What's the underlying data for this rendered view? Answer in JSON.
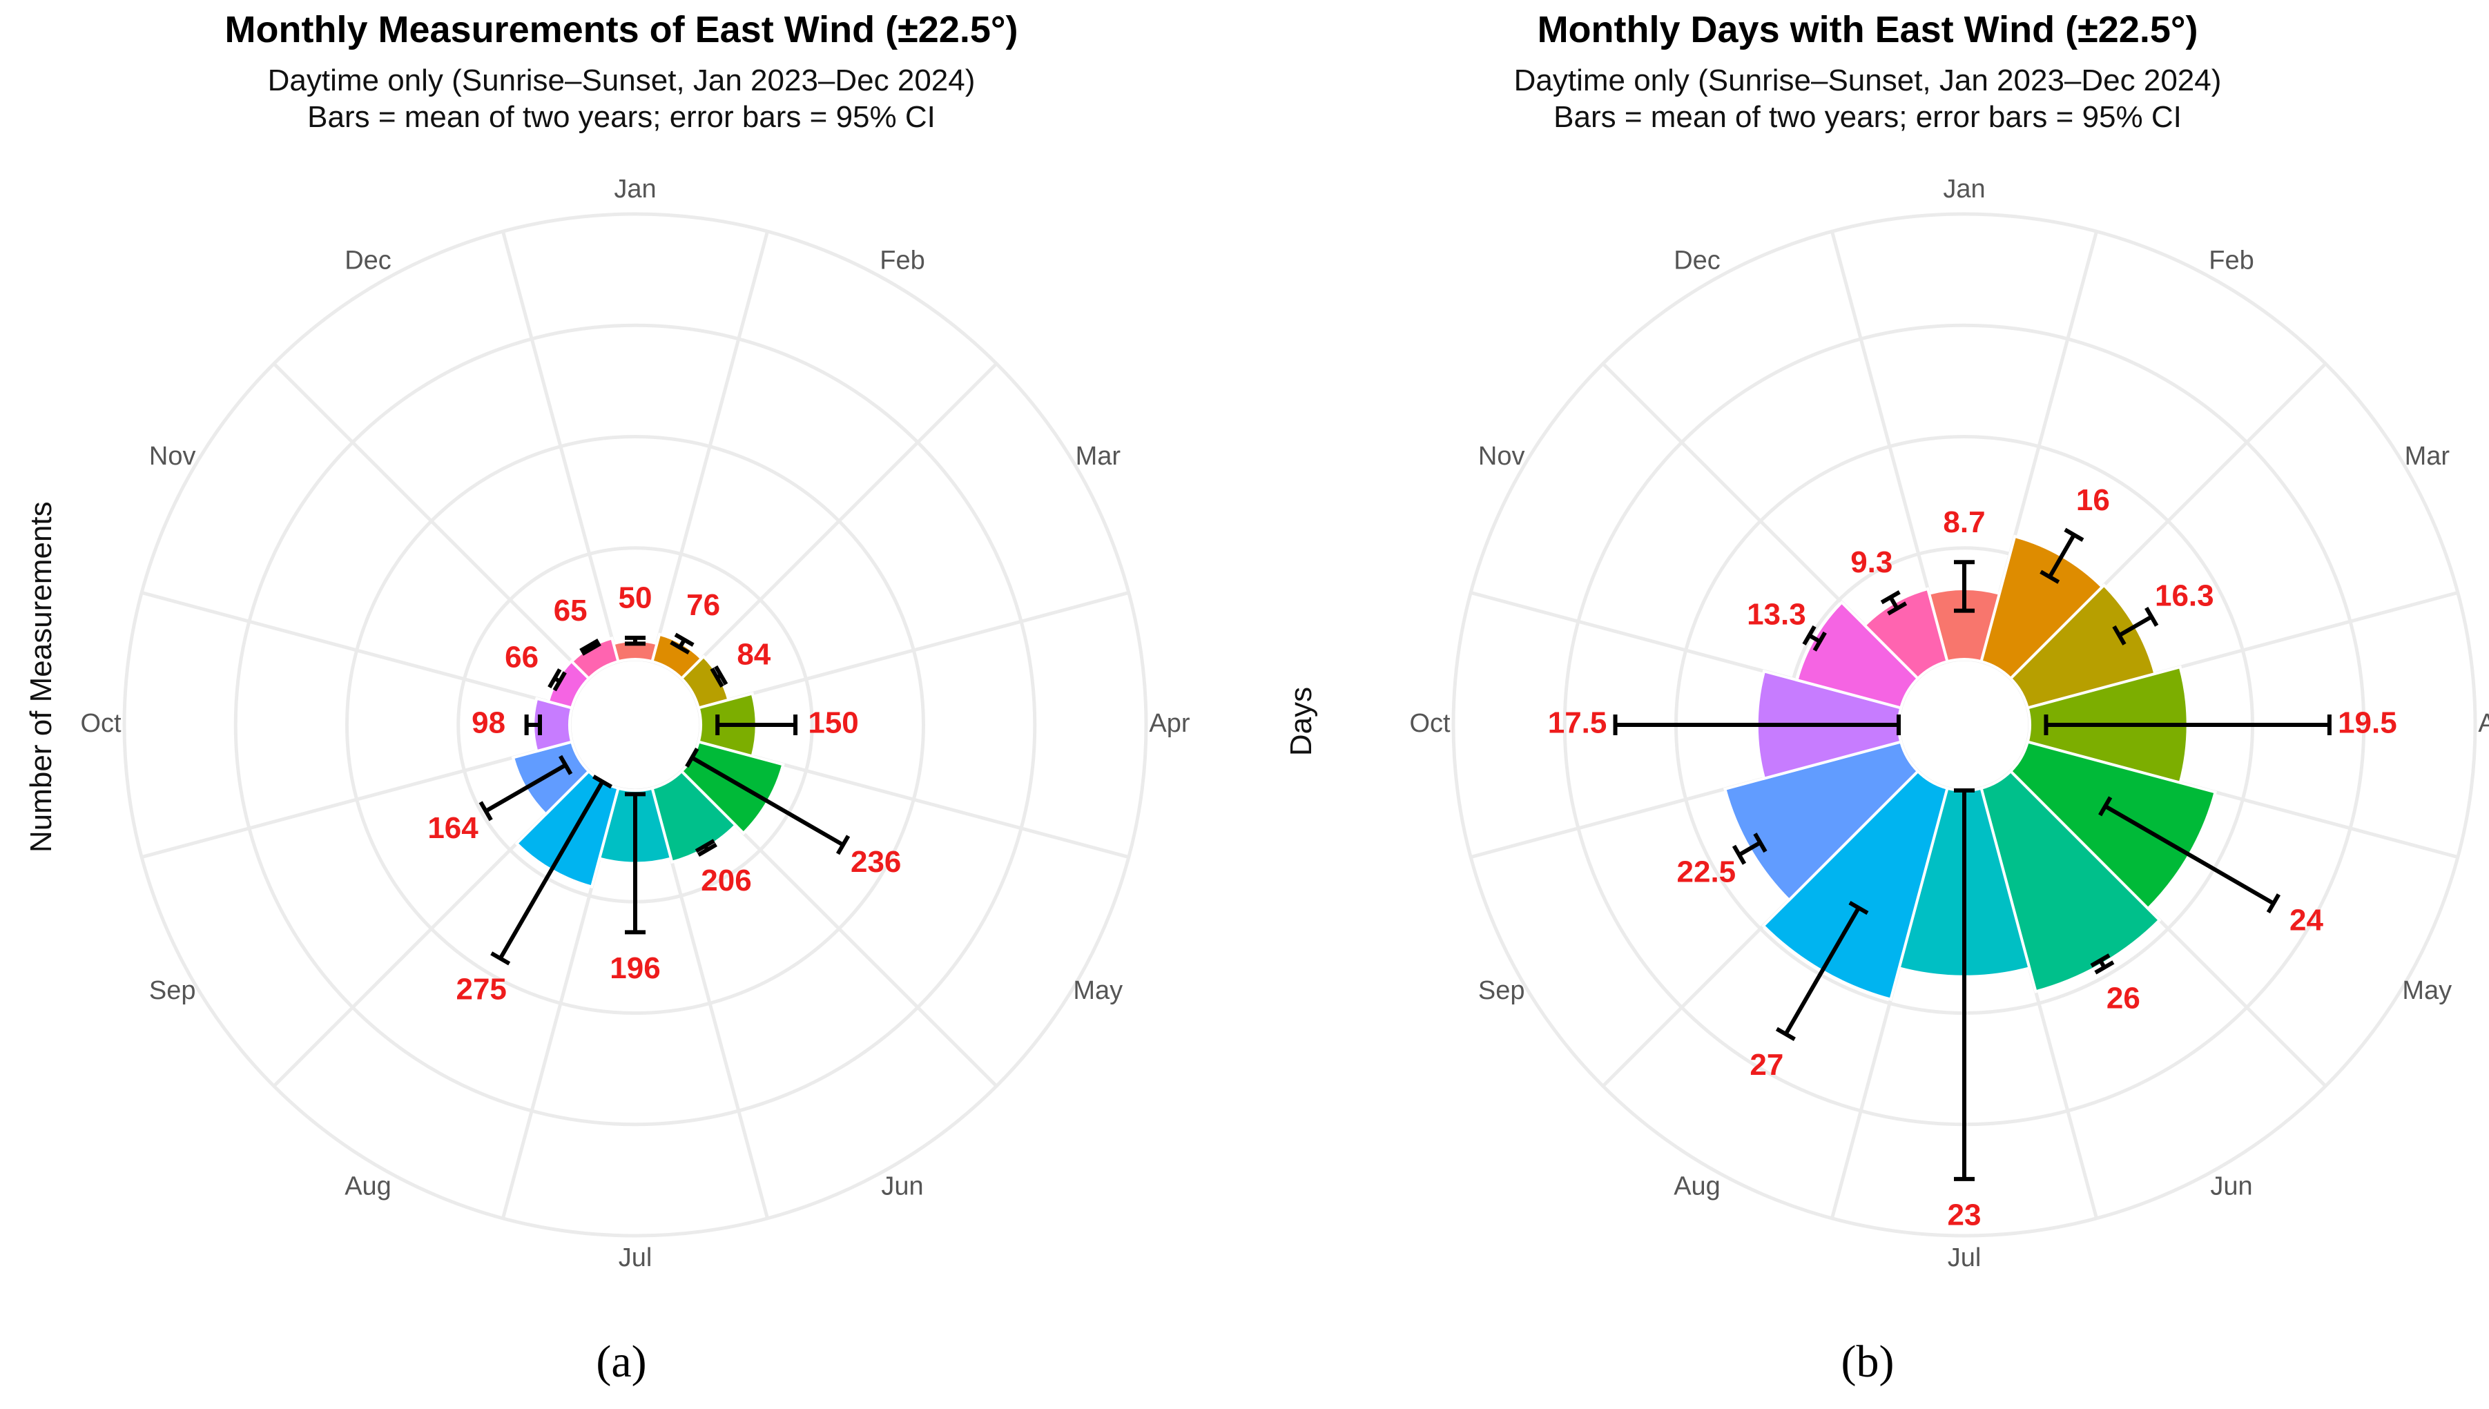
{
  "figure": {
    "panels": [
      {
        "id": "a",
        "caption": "(a)",
        "ylabel": "Number of Measurements"
      },
      {
        "id": "b",
        "caption": "(b)",
        "ylabel": "Days"
      }
    ]
  },
  "colors": {
    "Jan": "#F8766D",
    "Feb": "#DE8C00",
    "Mar": "#B79F00",
    "Apr": "#7CAE00",
    "May": "#00BA38",
    "Jun": "#00C08B",
    "Jul": "#00BFC4",
    "Aug": "#00B4F0",
    "Sep": "#619CFF",
    "Oct": "#C77CFF",
    "Nov": "#F564E3",
    "Dec": "#FF64B0"
  },
  "chart_data": [
    {
      "type": "polar-bar",
      "title": "Monthly Measurements of East Wind (±22.5°)",
      "subtitle": [
        "Daytime only (Sunrise–Sunset, Jan 2023–Dec 2024)",
        "Bars = mean of two years; error bars = 95% CI"
      ],
      "ylabel": "Number of Measurements",
      "months": [
        "Jan",
        "Feb",
        "Mar",
        "Apr",
        "May",
        "Jun",
        "Jul",
        "Aug",
        "Sep",
        "Oct",
        "Nov",
        "Dec"
      ],
      "values": [
        50,
        76,
        84,
        150,
        236,
        206,
        196,
        275,
        164,
        98,
        66,
        65
      ],
      "value_labels": [
        "50",
        "76",
        "84",
        "150",
        "236",
        "206",
        "196",
        "275",
        "164",
        "98",
        "66",
        "65"
      ],
      "ci_low": [
        42,
        64,
        78,
        45,
        0,
        200,
        10,
        0,
        40,
        80,
        58,
        60
      ],
      "ci_high": [
        58,
        88,
        90,
        255,
        470,
        212,
        382,
        550,
        288,
        116,
        74,
        70
      ],
      "axis_range": [
        0,
        1200
      ],
      "radial_gridlines": [
        0,
        300,
        600,
        900,
        1200
      ],
      "grid": true
    },
    {
      "type": "polar-bar",
      "title": "Monthly Days with East Wind (±22.5°)",
      "subtitle": [
        "Daytime only (Sunrise–Sunset, Jan 2023–Dec 2024)",
        "Bars = mean of two years; error bars = 95% CI"
      ],
      "ylabel": "Days",
      "months": [
        "Jan",
        "Feb",
        "Mar",
        "Apr",
        "May",
        "Jun",
        "Jul",
        "Aug",
        "Sep",
        "Oct",
        "Nov",
        "Dec"
      ],
      "values": [
        8.7,
        16,
        16.3,
        19.5,
        24,
        26,
        23,
        27,
        22.5,
        17.5,
        13.3,
        9.3
      ],
      "value_labels": [
        "8.7",
        "16",
        "16.3",
        "19.5",
        "24",
        "26",
        "23",
        "27",
        "22.5",
        "17.5",
        "13.3",
        "9.3"
      ],
      "ci_low": [
        6,
        13,
        14,
        2,
        12,
        25.5,
        0,
        18,
        21,
        0,
        12.5,
        8.5
      ],
      "ci_high": [
        12,
        19,
        18.6,
        37,
        36,
        26.5,
        48,
        36,
        24,
        35,
        14,
        10.1
      ],
      "axis_range": [
        0,
        55
      ],
      "radial_gridlines": [
        0,
        13.75,
        27.5,
        41.25,
        55
      ],
      "grid": true
    }
  ]
}
